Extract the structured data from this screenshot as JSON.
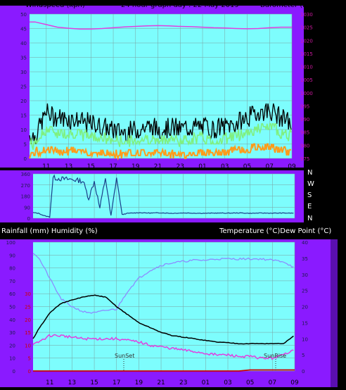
{
  "header": {
    "left": "Windspeed (kph)",
    "center": "24 hour graph day : 22 May 2019",
    "right": "Barometer (hpa)"
  },
  "middle_header": {
    "left": "Rainfall (mm)  Humidity (%)",
    "right": "Temperature (°C)Dew Point (°C)"
  },
  "direction_letters": [
    "N",
    "W",
    "S",
    "E",
    "N"
  ],
  "annotations": {
    "sunset": "SunSet",
    "sunrise": "SunRise"
  },
  "colors": {
    "frame": "#8a1aff",
    "plot_bg": "#7dfdfd",
    "grid": "#7aa0a0",
    "wind_gust": "#000000",
    "wind_avg": "#7ff07f",
    "wind_low": "#ff9c1a",
    "barometer": "#e040e0",
    "direction": "#1a3f8a",
    "humidity": "#8c8cff",
    "temperature": "#000000",
    "dewpoint": "#e040e0",
    "rain": "#cc0000"
  },
  "chart_data": [
    {
      "type": "line",
      "name": "wind-barometer",
      "x_ticks": [
        "11",
        "13",
        "15",
        "17",
        "19",
        "21",
        "23",
        "01",
        "03",
        "05",
        "07",
        "09"
      ],
      "y_left_ticks": [
        0,
        5,
        10,
        15,
        20,
        25,
        30,
        35,
        40,
        45,
        50
      ],
      "y_left_range": [
        0,
        50
      ],
      "y_right_ticks": [
        975,
        980,
        985,
        990,
        995,
        1000,
        1005,
        1010,
        1015,
        1020,
        1025,
        1030
      ],
      "y_right_range": [
        975,
        1030
      ],
      "grid": true,
      "x_hours": [
        9.5,
        10,
        11,
        12,
        13,
        14,
        15,
        16,
        17,
        18,
        19,
        20,
        21,
        22,
        23,
        24,
        25,
        26,
        27,
        28,
        29,
        30,
        31,
        32,
        33
      ],
      "series": [
        {
          "key": "gust",
          "values": [
            8,
            8,
            16,
            14,
            14,
            13,
            12,
            11,
            10,
            9,
            10,
            11,
            10,
            11,
            10,
            11,
            11,
            10,
            11,
            12,
            14,
            16,
            17,
            14,
            12
          ]
        },
        {
          "key": "avg",
          "values": [
            5,
            5,
            10,
            9,
            9,
            8,
            8,
            7,
            6,
            6,
            6,
            7,
            6,
            7,
            6,
            7,
            7,
            6,
            7,
            8,
            9,
            10,
            11,
            9,
            8
          ]
        },
        {
          "key": "low",
          "values": [
            1,
            2,
            3,
            2,
            3,
            2,
            2,
            2,
            1,
            2,
            2,
            2,
            2,
            2,
            1,
            2,
            2,
            2,
            2,
            3,
            3,
            4,
            4,
            3,
            2
          ]
        },
        {
          "key": "barometer",
          "values": [
            1027,
            1027,
            1026,
            1025,
            1024.6,
            1024.3,
            1024.3,
            1024.5,
            1024.8,
            1025.1,
            1025.3,
            1025.5,
            1025.6,
            1025.5,
            1025.3,
            1025.2,
            1025,
            1024.8,
            1024.7,
            1024.5,
            1024.4,
            1024.5,
            1024.8,
            1025,
            1025
          ]
        }
      ]
    },
    {
      "type": "line",
      "name": "wind-direction",
      "y_left_ticks": [
        0,
        90,
        180,
        270,
        360
      ],
      "y_range": [
        0,
        360
      ],
      "x_hours": [
        9.5,
        10,
        10.5,
        11,
        11.3,
        12,
        13,
        14,
        14.5,
        15,
        15.5,
        16,
        16.5,
        17,
        17.5,
        18,
        19,
        20,
        21,
        22,
        23,
        24,
        25,
        26,
        27,
        28,
        29,
        30,
        31,
        32,
        33
      ],
      "values": [
        45,
        40,
        20,
        10,
        330,
        320,
        315,
        300,
        160,
        300,
        80,
        330,
        10,
        330,
        30,
        40,
        45,
        42,
        44,
        40,
        43,
        41,
        40,
        42,
        41,
        43,
        40,
        42,
        41,
        42,
        41
      ]
    },
    {
      "type": "line",
      "name": "temperature-humidity",
      "y_left_ticks": [
        0,
        10,
        20,
        30,
        40,
        50,
        60,
        70,
        80,
        90,
        100
      ],
      "y_left_range": [
        0,
        100
      ],
      "y_rain_ticks": [
        0,
        5,
        10,
        15,
        20,
        25,
        30
      ],
      "y_rain_range": [
        0,
        50
      ],
      "y_right_ticks": [
        0,
        5,
        10,
        15,
        20,
        25,
        30,
        35,
        40
      ],
      "y_right_range": [
        0,
        40
      ],
      "grid": true,
      "x_hours": [
        9.5,
        10,
        11,
        12,
        13,
        14,
        15,
        16,
        17,
        18,
        19,
        20,
        21,
        22,
        23,
        24,
        25,
        26,
        27,
        28,
        29,
        30,
        31,
        32,
        33
      ],
      "series": [
        {
          "key": "humidity",
          "values": [
            92,
            88,
            72,
            56,
            50,
            46,
            45,
            47,
            48,
            62,
            72,
            78,
            82,
            84,
            85,
            86,
            86,
            87,
            87,
            87,
            87,
            87,
            86,
            85,
            80
          ]
        },
        {
          "key": "temperature",
          "values": [
            10,
            13,
            18,
            21,
            22,
            23,
            23.5,
            23,
            20,
            17.5,
            15,
            13.5,
            12,
            11,
            10.5,
            10,
            9.5,
            9,
            8.8,
            8.5,
            8.5,
            8.5,
            8.5,
            8.5,
            11
          ]
        },
        {
          "key": "dewpoint",
          "values": [
            8,
            9,
            11,
            11,
            10.5,
            10,
            10,
            10,
            10,
            9.5,
            9,
            8,
            7.5,
            7,
            6.5,
            6,
            5.5,
            5,
            5,
            4.5,
            4.5,
            4,
            4,
            5,
            7
          ]
        },
        {
          "key": "rain",
          "values": [
            0,
            0,
            0,
            0,
            0,
            0,
            0,
            0,
            0,
            0,
            0,
            0,
            0,
            0,
            0,
            0,
            0,
            0,
            0,
            0,
            0.4,
            0.4,
            0.4,
            0.4,
            0.4
          ]
        }
      ]
    }
  ]
}
